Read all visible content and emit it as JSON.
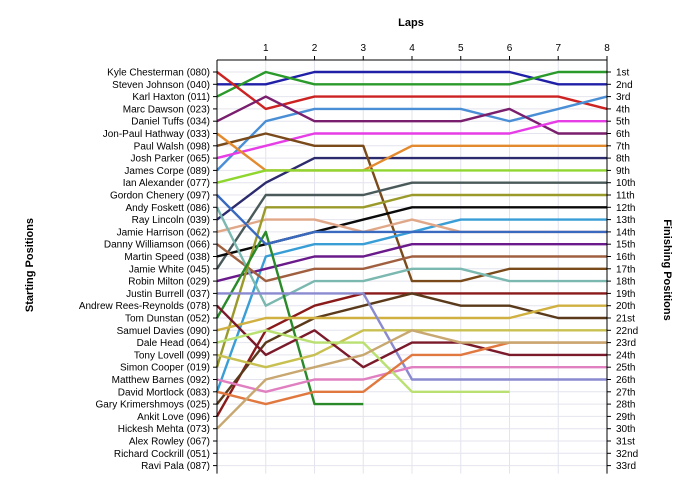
{
  "chart_data": {
    "type": "line",
    "title": "Laps",
    "xlabel": "Laps",
    "ylabel_left": "Starting Positions",
    "ylabel_right": "Finishing Positions",
    "x": [
      0,
      1,
      2,
      3,
      4,
      5,
      6,
      7,
      8
    ],
    "x_tick_labels": [
      "1",
      "2",
      "3",
      "4",
      "5",
      "6",
      "7",
      "8"
    ],
    "drivers": [
      "Kyle Chesterman (080)",
      "Steven Johnson (040)",
      "Karl Haxton (011)",
      "Marc Dawson (023)",
      "Daniel Tuffs (034)",
      "Jon-Paul Hathway (033)",
      "Paul Walsh (098)",
      "Josh Parker (065)",
      "James Corpe (089)",
      "Ian Alexander (077)",
      "Gordon Chenery (097)",
      "Andy Foskett (086)",
      "Ray Lincoln (039)",
      "Jamie Harrison (062)",
      "Danny Williamson (066)",
      "Martin Speed (038)",
      "Jamie White (045)",
      "Robin Milton (029)",
      "Justin Burrell (037)",
      "Andrew Rees-Reynolds (078)",
      "Tom Dunstan (052)",
      "Samuel Davies (090)",
      "Dale Head (064)",
      "Tony Lovell (099)",
      "Simon Cooper (019)",
      "Matthew Barnes (092)",
      "David Mortlock (083)",
      "Gary Krimershmoys (025)",
      "Ankit Love (096)",
      "Hickesh Mehta (073)",
      "Alex Rowley (067)",
      "Richard Cockrill (051)",
      "Ravi Pala (087)"
    ],
    "finishing_labels": [
      "1st",
      "2nd",
      "3rd",
      "4th",
      "5th",
      "6th",
      "7th",
      "8th",
      "9th",
      "10th",
      "11th",
      "12th",
      "13th",
      "14th",
      "15th",
      "16th",
      "17th",
      "18th",
      "19th",
      "20th",
      "21st",
      "22nd",
      "23rd",
      "24th",
      "25th",
      "26th",
      "27th",
      "28th",
      "29th",
      "30th",
      "31st",
      "32nd",
      "33rd"
    ],
    "series": [
      {
        "color": "#1f1fa8",
        "positions": [
          2,
          2,
          1,
          1,
          1,
          1,
          1,
          2,
          2
        ]
      },
      {
        "color": "#2a9a2a",
        "positions": [
          3,
          1,
          2,
          2,
          2,
          2,
          2,
          1,
          1
        ]
      },
      {
        "color": "#cc2222",
        "positions": [
          1,
          4,
          3,
          3,
          3,
          3,
          3,
          3,
          4
        ]
      },
      {
        "color": "#4a8fd6",
        "positions": [
          9,
          5,
          4,
          4,
          4,
          4,
          5,
          4,
          3
        ]
      },
      {
        "color": "#7a1f6e",
        "positions": [
          5,
          3,
          5,
          5,
          5,
          5,
          4,
          6,
          6
        ]
      },
      {
        "color": "#e63de6",
        "positions": [
          8,
          7,
          6,
          6,
          6,
          6,
          6,
          5,
          5
        ]
      },
      {
        "color": "#2b2b6e",
        "positions": [
          13,
          10,
          8,
          8,
          8,
          8,
          8,
          8,
          8
        ]
      },
      {
        "color": "#7a4a1a",
        "positions": [
          7,
          6,
          7,
          7,
          18,
          18,
          17,
          17,
          17
        ]
      },
      {
        "color": "#e38a2e",
        "positions": [
          6,
          9,
          9,
          9,
          7,
          7,
          7,
          7,
          7
        ]
      },
      {
        "color": "#8fd630",
        "positions": [
          10,
          9,
          9,
          9,
          9,
          9,
          9,
          9,
          9
        ]
      },
      {
        "color": "#4a5a5a",
        "positions": [
          17,
          11,
          11,
          11,
          10,
          10,
          10,
          10,
          10
        ]
      },
      {
        "color": "#0a0a0a",
        "positions": [
          16,
          15,
          14,
          13,
          12,
          12,
          12,
          12,
          12
        ]
      },
      {
        "color": "#3a9ed6",
        "positions": [
          27,
          16,
          15,
          15,
          14,
          13,
          13,
          13,
          13
        ]
      },
      {
        "color": "#e0a888",
        "positions": [
          14,
          13,
          13,
          14,
          13,
          14,
          14,
          14,
          14
        ]
      },
      {
        "color": "#6a1a8a",
        "positions": [
          18,
          17,
          16,
          16,
          15,
          15,
          15,
          15,
          15
        ]
      },
      {
        "color": "#a06040",
        "positions": [
          15,
          18,
          17,
          17,
          16,
          16,
          16,
          16,
          16
        ]
      },
      {
        "color": "#7ab8b0",
        "positions": [
          12,
          20,
          18,
          18,
          17,
          17,
          18,
          18,
          18
        ]
      },
      {
        "color": "#8a1a1a",
        "positions": [
          29,
          22,
          20,
          19,
          19,
          19,
          19,
          19,
          19
        ]
      },
      {
        "color": "#9a9a2a",
        "positions": [
          25,
          12,
          12,
          12,
          11,
          11,
          11,
          11,
          11
        ]
      },
      {
        "color": "#5a3a1a",
        "positions": [
          28,
          23,
          21,
          20,
          19,
          20,
          20,
          21,
          21
        ]
      },
      {
        "color": "#2a8a2a",
        "positions": [
          21,
          14,
          28,
          28,
          null,
          null,
          null,
          null,
          null
        ]
      },
      {
        "color": "#d0b040",
        "positions": [
          22,
          21,
          21,
          21,
          21,
          21,
          21,
          20,
          20
        ]
      },
      {
        "color": "#8a8ad0",
        "positions": [
          19,
          19,
          19,
          19,
          26,
          26,
          26,
          26,
          26
        ]
      },
      {
        "color": "#c8c050",
        "positions": [
          24,
          25,
          24,
          22,
          22,
          22,
          22,
          22,
          22
        ]
      },
      {
        "color": "#7a1a2a",
        "positions": [
          20,
          24,
          22,
          25,
          23,
          23,
          24,
          24,
          24
        ]
      },
      {
        "color": "#e080c0",
        "positions": [
          26,
          27,
          26,
          26,
          25,
          25,
          25,
          25,
          25
        ]
      },
      {
        "color": "#b9e070",
        "positions": [
          23,
          22,
          23,
          23,
          27,
          27,
          27,
          null,
          null
        ]
      },
      {
        "color": "#e07840",
        "positions": [
          27,
          28,
          27,
          27,
          24,
          24,
          23,
          23,
          23
        ]
      },
      {
        "color": "#c8a870",
        "positions": [
          30,
          26,
          25,
          24,
          22,
          23,
          23,
          23,
          23
        ]
      },
      {
        "color": "#3a6ac0",
        "positions": [
          11,
          15,
          14,
          14,
          14,
          14,
          14,
          14,
          14
        ]
      }
    ]
  }
}
